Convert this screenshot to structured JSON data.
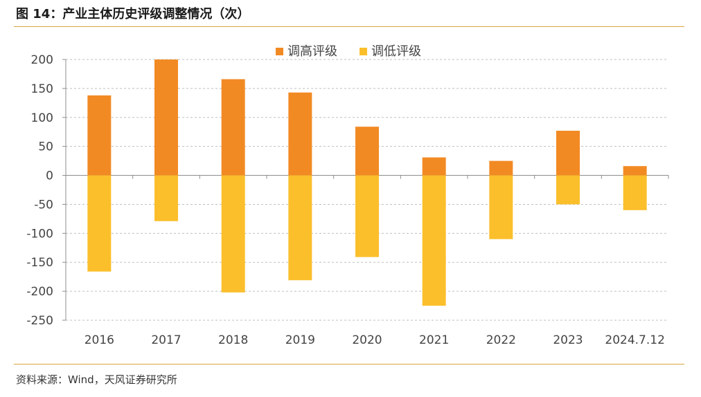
{
  "title": "图 14：产业主体历史评级调整情况（次）",
  "source": "资料来源：Wind，天风证券研究所",
  "colors": {
    "up": "#f28a24",
    "down": "#fbbf2c",
    "grid": "#bfbfbf",
    "rule": "#d9a441"
  },
  "chart_data": {
    "type": "bar",
    "stacked": true,
    "categories": [
      "2016",
      "2017",
      "2018",
      "2019",
      "2020",
      "2021",
      "2022",
      "2023",
      "2024.7.12"
    ],
    "series": [
      {
        "name": "调高评级",
        "values": [
          138,
          200,
          166,
          143,
          84,
          31,
          25,
          77,
          16
        ]
      },
      {
        "name": "调低评级",
        "values": [
          -166,
          -79,
          -202,
          -181,
          -141,
          -225,
          -110,
          -50,
          -60
        ]
      }
    ],
    "ylim": [
      -250,
      200
    ],
    "yticks": [
      "200",
      "150",
      "100",
      "50",
      "0",
      "-50",
      "-100",
      "-150",
      "-200",
      "-250"
    ],
    "grid": true,
    "legend": "top-center"
  }
}
